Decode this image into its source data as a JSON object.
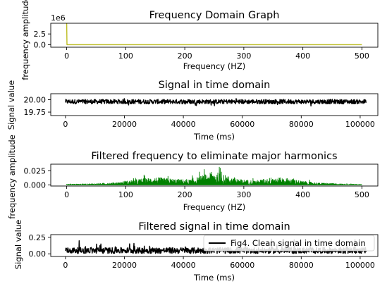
{
  "chart_data": [
    {
      "type": "line",
      "title": "Frequency Domain Graph",
      "xlabel": "Frequency (HZ)",
      "ylabel": "frequency amplitude",
      "offset_text": "1e6",
      "xlim": [
        -27,
        527
      ],
      "ylim": [
        -0.6,
        5.0
      ],
      "xticks": [
        0,
        100,
        200,
        300,
        400,
        500
      ],
      "yticks": [
        0.0,
        2.5
      ],
      "ytick_labels": [
        "0.0",
        "2.5"
      ],
      "grid": false,
      "series": [
        {
          "color": "#bcbd22",
          "x": [
            0,
            0.5,
            1,
            500
          ],
          "y": [
            5.0,
            0.0,
            0.0,
            0.0
          ]
        }
      ]
    },
    {
      "type": "line",
      "title": "Signal in time domain",
      "xlabel": "Time (ms)",
      "ylabel": "Signal value",
      "xlim": [
        -5000,
        106000
      ],
      "ylim": [
        19.68,
        20.12
      ],
      "xticks": [
        0,
        20000,
        40000,
        60000,
        80000,
        100000
      ],
      "yticks": [
        19.75,
        20.0
      ],
      "ytick_labels": [
        "19.75",
        "20.00"
      ],
      "grid": false,
      "noise": {
        "x_start": 0,
        "x_end": 102000,
        "center": 19.96,
        "amp": 0.045,
        "spike_amp": 0.09
      },
      "series": [
        {
          "color": "#000000"
        }
      ]
    },
    {
      "type": "line",
      "title": "Filtered frequency to eliminate major harmonics",
      "xlabel": "Frequency (HZ)",
      "ylabel": "frequency amplitude",
      "xlim": [
        -27,
        527
      ],
      "ylim": [
        -0.002,
        0.037
      ],
      "xticks": [
        0,
        100,
        200,
        300,
        400,
        500
      ],
      "yticks": [
        0.0,
        0.025
      ],
      "ytick_labels": [
        "0.000",
        "0.025"
      ],
      "grid": false,
      "envelope": [
        [
          0,
          0.0015
        ],
        [
          60,
          0.003
        ],
        [
          90,
          0.006
        ],
        [
          120,
          0.012
        ],
        [
          150,
          0.016
        ],
        [
          185,
          0.012
        ],
        [
          210,
          0.011
        ],
        [
          235,
          0.022
        ],
        [
          250,
          0.028
        ],
        [
          265,
          0.022
        ],
        [
          290,
          0.012
        ],
        [
          320,
          0.009
        ],
        [
          350,
          0.016
        ],
        [
          375,
          0.014
        ],
        [
          400,
          0.008
        ],
        [
          430,
          0.004
        ],
        [
          470,
          0.002
        ],
        [
          500,
          0.001
        ]
      ],
      "series": [
        {
          "color": "#008000"
        }
      ]
    },
    {
      "type": "line",
      "title": "Filtered signal in time domain",
      "xlabel": "Time (ms)",
      "ylabel": "Signal value",
      "xlim": [
        -5000,
        106000
      ],
      "ylim": [
        -0.04,
        0.29
      ],
      "xticks": [
        0,
        20000,
        40000,
        60000,
        80000,
        100000
      ],
      "yticks": [
        0.0,
        0.25
      ],
      "ytick_labels": [
        "0.00",
        "0.25"
      ],
      "grid": false,
      "legend": "upper-right",
      "noise": {
        "x_start": 0,
        "x_end": 102000,
        "floor": 0.005,
        "amp": 0.09,
        "spike_amp": 0.22
      },
      "series": [
        {
          "name": "Fig4. Clean signal in time domain",
          "color": "#000000"
        }
      ]
    }
  ]
}
